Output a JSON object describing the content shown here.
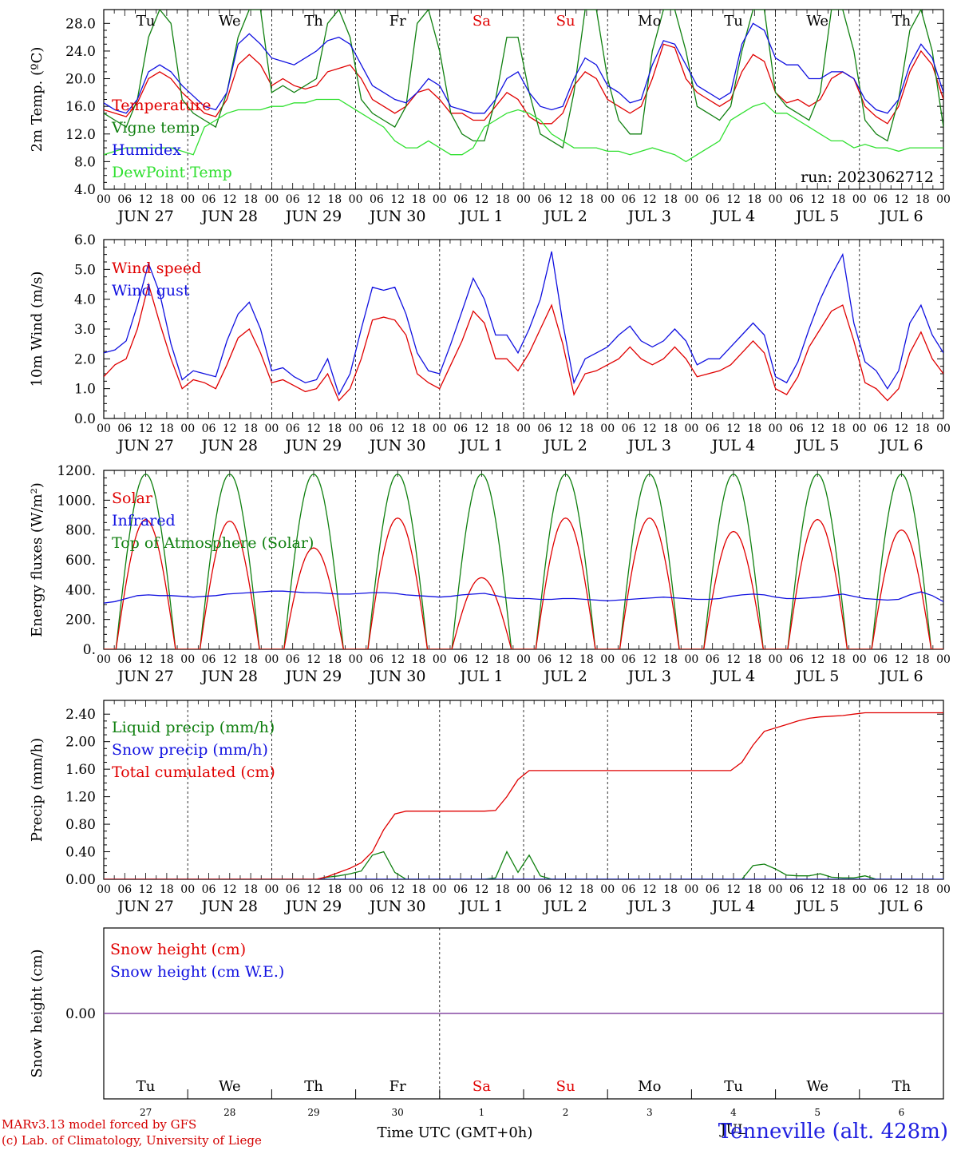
{
  "footer": {
    "credit_line1": "MARv3.13 model forced by GFS",
    "credit_line2": "(c) Lab. of Climatology, University of Liege",
    "xlabel": "Time UTC (GMT+0h)",
    "station": "Tenneville (alt. 428m)"
  },
  "colors": {
    "red": "#e00000",
    "green": "#108010",
    "blue": "#1010e0",
    "lightgreen": "#30e030",
    "purple": "#8040a0",
    "grid": "#000000"
  },
  "days": [
    "JUN 27",
    "JUN 28",
    "JUN 29",
    "JUN 30",
    "JUL  1",
    "JUL  2",
    "JUL  3",
    "JUL  4",
    "JUL  5",
    "JUL  6"
  ],
  "weekdays": [
    "Tu",
    "We",
    "Th",
    "Fr",
    "Sa",
    "Su",
    "Mo",
    "Tu",
    "We",
    "Th"
  ],
  "weekday_colors": [
    "#000000",
    "#000000",
    "#000000",
    "#000000",
    "#e00000",
    "#e00000",
    "#000000",
    "#000000",
    "#000000",
    "#000000"
  ],
  "hour_ticks": [
    "00",
    "06",
    "12",
    "18"
  ],
  "day_numbers": [
    "27",
    "28",
    "29",
    "30",
    "1",
    "2",
    "3",
    "4",
    "5",
    "6"
  ],
  "month_label": "JUL",
  "chart_data": [
    {
      "type": "line",
      "ylabel": "2m Temp. (ºC)",
      "ylim": [
        4,
        30
      ],
      "yticks": [
        "4.0",
        "8.0",
        "12.0",
        "16.0",
        "20.0",
        "24.0",
        "28.0"
      ],
      "annotation": "run: 2023062712",
      "series": [
        {
          "name": "Temperature",
          "color": "#e00000",
          "values": [
            15.5,
            15,
            14.5,
            16.5,
            20,
            21,
            20,
            18,
            16.5,
            15,
            14.5,
            17,
            22,
            23.5,
            22,
            19,
            20,
            19,
            18.5,
            19,
            21,
            21.5,
            22,
            20,
            17,
            16,
            15,
            16,
            18,
            18.5,
            17,
            15,
            15,
            14,
            14,
            16,
            18,
            17,
            14.5,
            13.5,
            13.5,
            15,
            19,
            21,
            20,
            17,
            16,
            15,
            16,
            20,
            25,
            24.5,
            20,
            18,
            17,
            16,
            17,
            21,
            23.5,
            22.5,
            18,
            16.5,
            17,
            16,
            17,
            20,
            21,
            20,
            16,
            14.5,
            13.5,
            16,
            21,
            24,
            22,
            17
          ]
        },
        {
          "name": "Vigne temp",
          "color": "#108010",
          "values": [
            15,
            14,
            13,
            17,
            26,
            30,
            28,
            17,
            15,
            14,
            13,
            18,
            26,
            30,
            30,
            18,
            19,
            18,
            19,
            20,
            28,
            30,
            26,
            17,
            15,
            14,
            13,
            16,
            28,
            30,
            24,
            15,
            12,
            11,
            11,
            17,
            26,
            26,
            18,
            12,
            11,
            10,
            18,
            30,
            30,
            20,
            14,
            12,
            12,
            24,
            30,
            30,
            24,
            16,
            15,
            14,
            16,
            24,
            30,
            30,
            18,
            16,
            15,
            14,
            18,
            30,
            30,
            24,
            14,
            12,
            11,
            17,
            27,
            30,
            24,
            13
          ]
        },
        {
          "name": "Humidex",
          "color": "#1010e0",
          "values": [
            16.5,
            15.5,
            15,
            17,
            21,
            22,
            21,
            19,
            17.5,
            16,
            15.5,
            18,
            25,
            26.5,
            25,
            23,
            22.5,
            22,
            23,
            24,
            25.5,
            26,
            25,
            22,
            19,
            18,
            17,
            16.5,
            18,
            20,
            19,
            16,
            15.5,
            15,
            15,
            17,
            20,
            21,
            18,
            16,
            15.5,
            16,
            20,
            23,
            22,
            19,
            18,
            16.5,
            17,
            22,
            25.5,
            25,
            22,
            19,
            18,
            17,
            18,
            25,
            28,
            27,
            23,
            22,
            22,
            20,
            20,
            21,
            21,
            20,
            17,
            15.5,
            15,
            17,
            22,
            25,
            23,
            18
          ]
        },
        {
          "name": "DewPoint Temp",
          "color": "#30e030",
          "values": [
            9,
            9.5,
            10,
            10,
            10,
            10,
            10,
            9.5,
            9,
            13,
            14,
            15,
            15.5,
            15.5,
            15.5,
            16,
            16,
            16.5,
            16.5,
            17,
            17,
            17,
            16,
            15,
            14,
            13,
            11,
            10,
            10,
            11,
            10,
            9,
            9,
            10,
            13,
            14,
            15,
            15.5,
            15,
            14,
            12,
            11,
            10,
            10,
            10,
            9.5,
            9.5,
            9,
            9.5,
            10,
            9.5,
            9,
            8,
            9,
            10,
            11,
            14,
            15,
            16,
            16.5,
            15,
            15,
            14,
            13,
            12,
            11,
            11,
            10,
            10.5,
            10,
            10,
            9.5,
            10,
            10,
            10,
            10
          ]
        }
      ]
    },
    {
      "type": "line",
      "ylabel": "10m Wind (m/s)",
      "ylim": [
        0,
        6
      ],
      "yticks": [
        "0.0",
        "1.0",
        "2.0",
        "3.0",
        "4.0",
        "5.0",
        "6.0"
      ],
      "series": [
        {
          "name": "Wind speed",
          "color": "#e00000",
          "values": [
            1.4,
            1.8,
            2.0,
            3.0,
            4.5,
            3.2,
            2.0,
            1.0,
            1.3,
            1.2,
            1.0,
            1.8,
            2.7,
            3.0,
            2.2,
            1.2,
            1.3,
            1.1,
            0.9,
            1.0,
            1.5,
            0.6,
            1.0,
            2.0,
            3.3,
            3.4,
            3.3,
            2.8,
            1.5,
            1.2,
            1.0,
            1.8,
            2.6,
            3.6,
            3.2,
            2.0,
            2.0,
            1.6,
            2.2,
            3.0,
            3.8,
            2.5,
            0.8,
            1.5,
            1.6,
            1.8,
            2.0,
            2.4,
            2.0,
            1.8,
            2.0,
            2.4,
            2.0,
            1.4,
            1.5,
            1.6,
            1.8,
            2.2,
            2.6,
            2.2,
            1.0,
            0.8,
            1.4,
            2.4,
            3.0,
            3.6,
            3.8,
            2.6,
            1.2,
            1.0,
            0.6,
            1.0,
            2.2,
            2.9,
            2.0,
            1.5
          ]
        },
        {
          "name": "Wind gust",
          "color": "#1010e0",
          "values": [
            2.2,
            2.3,
            2.6,
            3.8,
            5.2,
            4.2,
            2.5,
            1.3,
            1.6,
            1.5,
            1.4,
            2.6,
            3.5,
            3.9,
            3.0,
            1.6,
            1.7,
            1.4,
            1.2,
            1.3,
            2.0,
            0.8,
            1.5,
            3.0,
            4.4,
            4.3,
            4.4,
            3.5,
            2.2,
            1.6,
            1.5,
            2.5,
            3.6,
            4.7,
            4.0,
            2.8,
            2.8,
            2.2,
            3.0,
            4.0,
            5.6,
            3.2,
            1.2,
            2.0,
            2.2,
            2.4,
            2.8,
            3.1,
            2.6,
            2.4,
            2.6,
            3.0,
            2.6,
            1.8,
            2.0,
            2.0,
            2.4,
            2.8,
            3.2,
            2.8,
            1.4,
            1.2,
            1.9,
            3.0,
            4.0,
            4.8,
            5.5,
            3.2,
            1.9,
            1.6,
            1.0,
            1.6,
            3.2,
            3.8,
            2.8,
            2.2
          ]
        }
      ]
    },
    {
      "type": "line",
      "ylabel": "Energy fluxes (W/m²)",
      "ylim": [
        0,
        1200
      ],
      "yticks": [
        "0.",
        "200.",
        "400.",
        "600.",
        "800.",
        "1000.",
        "1200."
      ],
      "day_peaks": {
        "Solar": [
          870,
          860,
          680,
          880,
          480,
          880,
          880,
          790,
          870,
          800
        ],
        "Top of Atmosphere (Solar)": [
          1175,
          1175,
          1175,
          1175,
          1175,
          1175,
          1175,
          1175,
          1175,
          1175
        ]
      },
      "series": [
        {
          "name": "Solar",
          "color": "#e00000"
        },
        {
          "name": "Infrared",
          "color": "#1010e0",
          "values": [
            310,
            320,
            340,
            360,
            365,
            360,
            360,
            355,
            350,
            355,
            360,
            370,
            375,
            380,
            385,
            390,
            390,
            385,
            380,
            380,
            375,
            370,
            370,
            375,
            380,
            380,
            375,
            365,
            360,
            355,
            350,
            355,
            365,
            370,
            375,
            360,
            345,
            340,
            340,
            335,
            335,
            340,
            340,
            335,
            330,
            325,
            330,
            335,
            340,
            345,
            350,
            345,
            340,
            335,
            335,
            340,
            355,
            365,
            370,
            365,
            350,
            340,
            340,
            345,
            350,
            360,
            370,
            355,
            340,
            335,
            330,
            335,
            365,
            385,
            360,
            320
          ]
        },
        {
          "name": "Top of Atmosphere (Solar)",
          "color": "#108010"
        }
      ]
    },
    {
      "type": "line",
      "ylabel": "Precip (mm/h)",
      "ylim": [
        0,
        2.6
      ],
      "yticks": [
        "0.00",
        "0.40",
        "0.80",
        "1.20",
        "1.60",
        "2.00",
        "2.40"
      ],
      "series": [
        {
          "name": "Liquid precip (mm/h)",
          "color": "#108010",
          "values": [
            0,
            0,
            0,
            0,
            0,
            0,
            0,
            0,
            0,
            0,
            0,
            0,
            0,
            0,
            0,
            0,
            0,
            0,
            0,
            0,
            0.03,
            0.05,
            0.08,
            0.12,
            0.35,
            0.4,
            0.1,
            0,
            0,
            0,
            0,
            0,
            0,
            0,
            0,
            0.02,
            0.4,
            0.1,
            0.35,
            0.05,
            0,
            0,
            0,
            0,
            0,
            0,
            0,
            0,
            0,
            0,
            0,
            0,
            0,
            0,
            0,
            0,
            0,
            0,
            0.2,
            0.22,
            0.15,
            0.06,
            0.05,
            0.05,
            0.08,
            0.03,
            0.02,
            0.02,
            0.05,
            0,
            0,
            0,
            0,
            0,
            0,
            0
          ]
        },
        {
          "name": "Snow precip (mm/h)",
          "color": "#1010e0",
          "values": [
            0,
            0,
            0,
            0,
            0,
            0,
            0,
            0,
            0,
            0,
            0,
            0,
            0,
            0,
            0,
            0,
            0,
            0,
            0,
            0,
            0,
            0,
            0,
            0,
            0,
            0,
            0,
            0,
            0,
            0,
            0,
            0,
            0,
            0,
            0,
            0,
            0,
            0,
            0,
            0,
            0,
            0,
            0,
            0,
            0,
            0,
            0,
            0,
            0,
            0,
            0,
            0,
            0,
            0,
            0,
            0,
            0,
            0,
            0,
            0,
            0,
            0,
            0,
            0,
            0,
            0,
            0,
            0,
            0,
            0,
            0,
            0,
            0,
            0,
            0,
            0
          ]
        },
        {
          "name": "Total cumulated (cm)",
          "color": "#e00000",
          "values": [
            0,
            0,
            0,
            0,
            0,
            0,
            0,
            0,
            0,
            0,
            0,
            0,
            0,
            0,
            0,
            0,
            0,
            0,
            0,
            0,
            0.04,
            0.1,
            0.16,
            0.24,
            0.4,
            0.72,
            0.95,
            0.99,
            0.99,
            0.99,
            0.99,
            0.99,
            0.99,
            0.99,
            0.99,
            1.0,
            1.2,
            1.45,
            1.58,
            1.58,
            1.58,
            1.58,
            1.58,
            1.58,
            1.58,
            1.58,
            1.58,
            1.58,
            1.58,
            1.58,
            1.58,
            1.58,
            1.58,
            1.58,
            1.58,
            1.58,
            1.58,
            1.7,
            1.95,
            2.15,
            2.2,
            2.25,
            2.3,
            2.34,
            2.36,
            2.37,
            2.38,
            2.4,
            2.42,
            2.42,
            2.42,
            2.42,
            2.42,
            2.42,
            2.42,
            2.42
          ]
        }
      ]
    },
    {
      "type": "line",
      "ylabel": "Snow height (cm)",
      "ylim": [
        -1,
        1
      ],
      "yticks": [
        "0.00"
      ],
      "series": [
        {
          "name": "Snow height (cm)",
          "color": "#e00000",
          "values": [
            0,
            0
          ]
        },
        {
          "name": "Snow height (cm W.E.)",
          "color": "#1010e0",
          "values": [
            0,
            0
          ]
        }
      ]
    }
  ]
}
